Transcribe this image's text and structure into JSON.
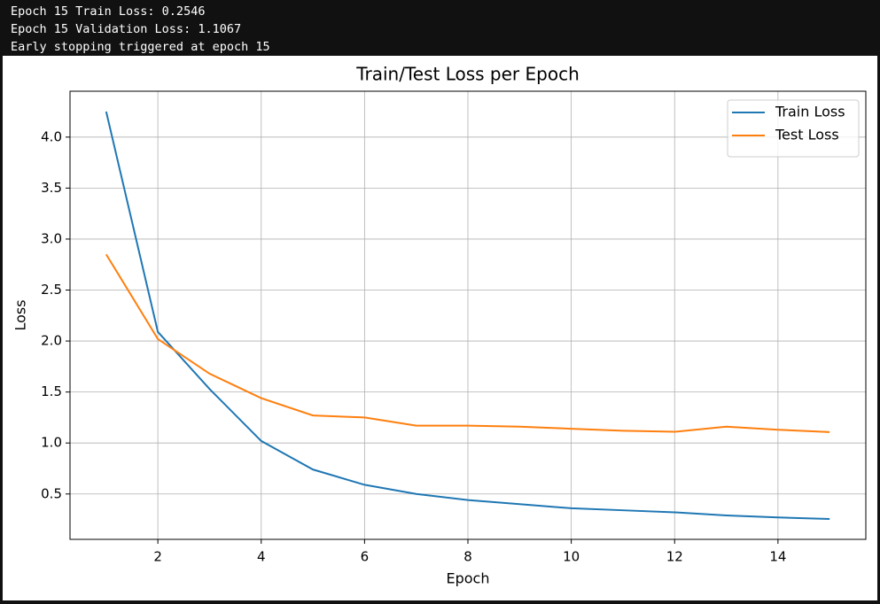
{
  "console_lines": [
    "Epoch 15 Train Loss: 0.2546",
    "Epoch 15 Validation Loss: 1.1067",
    "Early stopping triggered at epoch 15"
  ],
  "chart_data": {
    "type": "line",
    "title": "Train/Test Loss per Epoch",
    "x_label": "Epoch",
    "y_label": "Loss",
    "x": [
      1,
      2,
      3,
      4,
      5,
      6,
      7,
      8,
      9,
      10,
      11,
      12,
      13,
      14,
      15
    ],
    "series": [
      {
        "name": "Train Loss",
        "color": "#1f77b4",
        "values": [
          4.25,
          2.09,
          1.53,
          1.02,
          0.74,
          0.59,
          0.5,
          0.44,
          0.4,
          0.36,
          0.34,
          0.32,
          0.29,
          0.27,
          0.2546
        ]
      },
      {
        "name": "Test Loss",
        "color": "#ff7f0e",
        "values": [
          2.85,
          2.02,
          1.68,
          1.44,
          1.27,
          1.25,
          1.17,
          1.17,
          1.16,
          1.14,
          1.12,
          1.11,
          1.16,
          1.13,
          1.1067
        ]
      }
    ],
    "xlim": [
      0.3,
      15.7
    ],
    "ylim": [
      0.055,
      4.45
    ],
    "xticks": [
      2,
      4,
      6,
      8,
      10,
      12,
      14
    ],
    "yticks": [
      0.5,
      {
        "value": 1.0,
        "label": "1.0"
      },
      1.5,
      {
        "value": 2.0,
        "label": "2.0"
      },
      2.5,
      {
        "value": 3.0,
        "label": "3.0"
      },
      3.5,
      {
        "value": 4.0,
        "label": "4.0"
      }
    ],
    "grid": true,
    "legend": "upper-right"
  }
}
